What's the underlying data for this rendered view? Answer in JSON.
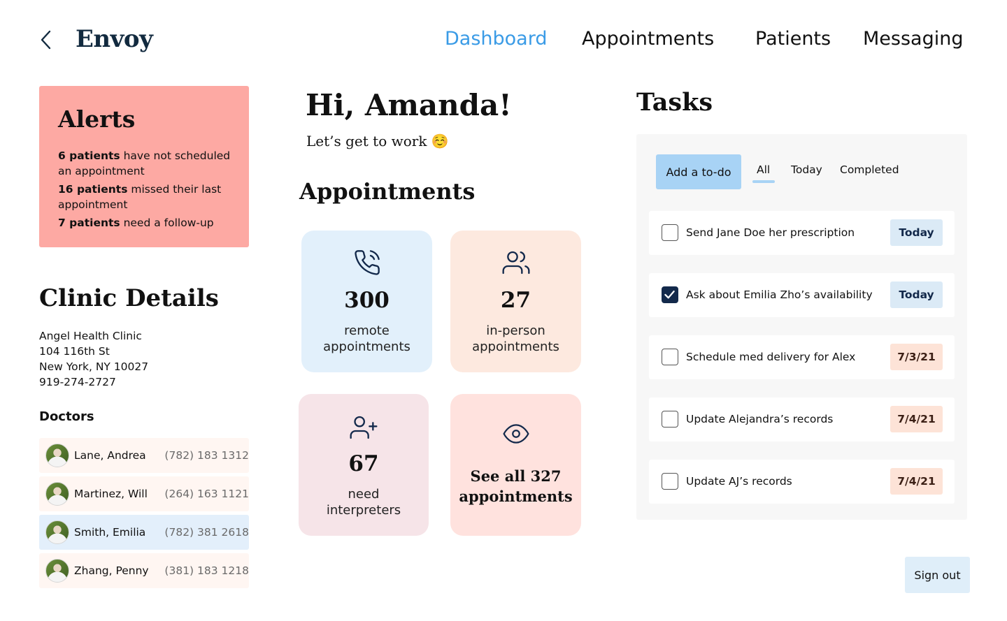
{
  "header": {
    "logo": "Envoy",
    "nav": [
      "Dashboard",
      "Appointments",
      "Patients",
      "Messaging"
    ],
    "active_nav": "Dashboard",
    "accent_color": "#3a9be6",
    "back_icon": "chevron-left-icon"
  },
  "alerts": {
    "title": "Alerts",
    "items": [
      {
        "bold": "6 patients",
        "rest": " have not scheduled an appointment"
      },
      {
        "bold": "16 patients",
        "rest": " missed their last appointment"
      },
      {
        "bold": "7 patients",
        "rest": " need a follow-up"
      }
    ],
    "background": "#fda9a3"
  },
  "clinic": {
    "title": "Clinic Details",
    "name": "Angel Health Clinic",
    "street": "104 116th St",
    "city": "New York, NY 10027",
    "phone": "919-274-2727",
    "doctors_title": "Doctors",
    "doctors": [
      {
        "name": "Lane, Andrea",
        "phone": "(782) 183 1312",
        "selected": false
      },
      {
        "name": "Martinez, Will",
        "phone": "(264) 163 1121",
        "selected": false
      },
      {
        "name": "Smith, Emilia",
        "phone": "(782) 381 2618",
        "selected": true
      },
      {
        "name": "Zhang, Penny",
        "phone": "(381) 183 1218",
        "selected": false
      }
    ]
  },
  "greeting": {
    "title": "Hi, Amanda!",
    "subtitle": "Let’s get to work ☺️"
  },
  "appointments": {
    "title": "Appointments",
    "cards": [
      {
        "icon": "phone-call-icon",
        "count": "300",
        "label_line1": "remote",
        "label_line2": "appointments"
      },
      {
        "icon": "users-icon",
        "count": "27",
        "label_line1": "in-person",
        "label_line2": "appointments"
      },
      {
        "icon": "user-plus-icon",
        "count": "67",
        "label_line1": "need",
        "label_line2": "interpreters"
      }
    ],
    "see_all_line1": "See all 327",
    "see_all_line2": "appointments",
    "see_all_icon": "eye-icon"
  },
  "tasks": {
    "title": "Tasks",
    "add_label": "Add a to-do",
    "filters": [
      "All",
      "Today",
      "Completed"
    ],
    "active_filter": "All",
    "items": [
      {
        "text": "Send Jane Doe her prescription",
        "due": "Today",
        "checked": false
      },
      {
        "text": "Ask about Emilia Zho’s availability",
        "due": "Today",
        "checked": true
      },
      {
        "text": "Schedule med delivery for Alex",
        "due": "7/3/21",
        "checked": false
      },
      {
        "text": "Update Alejandra’s records",
        "due": "7/4/21",
        "checked": false
      },
      {
        "text": "Update AJ’s records",
        "due": "7/4/21",
        "checked": false
      }
    ]
  },
  "sign_out": "Sign out"
}
